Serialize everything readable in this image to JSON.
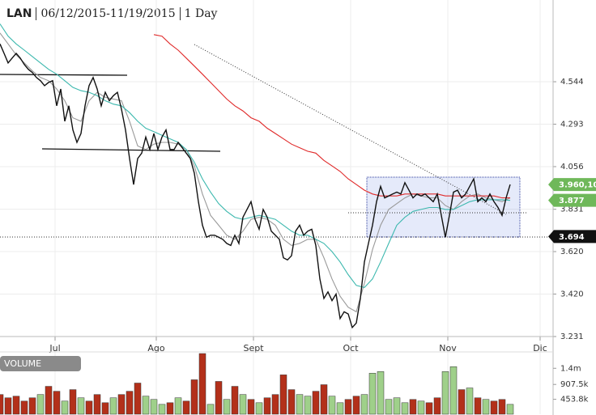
{
  "chart_data": {
    "type": "stock",
    "title_symbol": "LAN",
    "title_range": "06/12/2015-11/19/2015",
    "title_interval": "1 Day",
    "log_scale": true,
    "grid": true,
    "xlim": [
      0,
      136.6
    ],
    "xticks": [
      {
        "value": 13.6,
        "label": "Jul"
      },
      {
        "value": 38.6,
        "label": "Ago"
      },
      {
        "value": 62.6,
        "label": "Sept"
      },
      {
        "value": 86.6,
        "label": "Oct"
      },
      {
        "value": 110.6,
        "label": "Nov"
      },
      {
        "value": 133.4,
        "label": "Dic"
      }
    ],
    "ylim": [
      3.231,
      4.95
    ],
    "yticks": [
      4.544,
      4.293,
      4.056,
      3.831,
      {
        "value": 3.62,
        "label": "3.620"
      },
      {
        "value": 3.42,
        "label": "3.420"
      },
      3.231
    ],
    "series": [
      {
        "color": "#999999",
        "x": [
          0,
          2,
          4,
          6,
          8,
          10,
          12,
          14,
          16,
          18,
          20,
          22,
          24,
          26,
          28,
          30,
          32,
          34,
          36,
          38,
          40,
          42,
          44,
          46,
          48,
          50,
          52,
          54,
          56,
          58,
          60,
          62,
          64,
          66,
          68,
          70,
          72,
          74,
          76,
          78,
          80,
          82,
          84,
          86,
          88,
          90,
          92,
          94,
          96,
          98,
          100,
          102,
          104,
          106,
          108,
          110,
          112,
          114,
          116,
          118,
          120,
          122,
          124,
          126
        ],
        "values": [
          4.85,
          4.78,
          4.71,
          4.66,
          4.61,
          4.57,
          4.55,
          4.5,
          4.43,
          4.33,
          4.31,
          4.43,
          4.48,
          4.45,
          4.44,
          4.43,
          4.31,
          4.17,
          4.15,
          4.18,
          4.19,
          4.19,
          4.18,
          4.15,
          4.06,
          3.91,
          3.8,
          3.75,
          3.7,
          3.68,
          3.72,
          3.78,
          3.79,
          3.78,
          3.75,
          3.68,
          3.65,
          3.66,
          3.68,
          3.68,
          3.59,
          3.49,
          3.41,
          3.36,
          3.34,
          3.47,
          3.63,
          3.75,
          3.83,
          3.86,
          3.89,
          3.91,
          3.9,
          3.89,
          3.89,
          3.85,
          3.83,
          3.87,
          3.9,
          3.91,
          3.89,
          3.88,
          3.87,
          3.89
        ]
      },
      {
        "color": "#3cb8ae",
        "x": [
          0,
          2,
          4,
          6,
          8,
          10,
          12,
          14,
          16,
          18,
          20,
          22,
          24,
          26,
          28,
          30,
          32,
          34,
          36,
          38,
          40,
          42,
          44,
          46,
          48,
          50,
          52,
          54,
          56,
          58,
          60,
          62,
          64,
          66,
          68,
          70,
          72,
          74,
          76,
          78,
          80,
          82,
          84,
          86,
          88,
          90,
          92,
          94,
          96,
          98,
          100,
          102,
          104,
          106,
          108,
          110,
          112,
          114,
          116,
          118,
          120,
          122,
          124,
          126
        ],
        "values": [
          4.91,
          4.83,
          4.78,
          4.74,
          4.7,
          4.66,
          4.62,
          4.59,
          4.55,
          4.51,
          4.49,
          4.48,
          4.46,
          4.43,
          4.41,
          4.4,
          4.36,
          4.31,
          4.27,
          4.25,
          4.23,
          4.21,
          4.19,
          4.15,
          4.08,
          3.99,
          3.92,
          3.86,
          3.82,
          3.79,
          3.78,
          3.79,
          3.8,
          3.79,
          3.78,
          3.75,
          3.72,
          3.7,
          3.7,
          3.68,
          3.66,
          3.62,
          3.57,
          3.51,
          3.46,
          3.45,
          3.49,
          3.57,
          3.66,
          3.75,
          3.79,
          3.82,
          3.83,
          3.84,
          3.84,
          3.83,
          3.83,
          3.85,
          3.87,
          3.88,
          3.88,
          3.88,
          3.88,
          3.877
        ]
      },
      {
        "color": "#e02a2a",
        "x": [
          38,
          40,
          42,
          44,
          46,
          48,
          50,
          52,
          54,
          56,
          58,
          60,
          62,
          64,
          66,
          68,
          70,
          72,
          74,
          76,
          78,
          80,
          82,
          84,
          86,
          88,
          90,
          92,
          94,
          96,
          98,
          100,
          102,
          104,
          106,
          108,
          110,
          112,
          114,
          116,
          118,
          120,
          122,
          124,
          126
        ],
        "values": [
          4.84,
          4.83,
          4.78,
          4.74,
          4.69,
          4.64,
          4.59,
          4.54,
          4.49,
          4.44,
          4.4,
          4.37,
          4.33,
          4.31,
          4.27,
          4.24,
          4.21,
          4.18,
          4.16,
          4.14,
          4.13,
          4.09,
          4.06,
          4.03,
          3.99,
          3.96,
          3.93,
          3.91,
          3.9,
          3.9,
          3.9,
          3.91,
          3.91,
          3.91,
          3.91,
          3.91,
          3.9,
          3.9,
          3.9,
          3.9,
          3.9,
          3.9,
          3.9,
          3.89,
          3.89
        ]
      },
      {
        "color": "#111111",
        "x": [
          0,
          1,
          2,
          3,
          4,
          5,
          6,
          7,
          8,
          9,
          10,
          11,
          12,
          13,
          14,
          15,
          16,
          17,
          18,
          19,
          20,
          21,
          22,
          23,
          24,
          25,
          26,
          27,
          28,
          29,
          30,
          31,
          32,
          33,
          34,
          35,
          36,
          37,
          38,
          39,
          40,
          41,
          42,
          43,
          44,
          45,
          46,
          47,
          48,
          49,
          50,
          51,
          52,
          53,
          54,
          55,
          56,
          57,
          58,
          59,
          60,
          61,
          62,
          63,
          64,
          65,
          66,
          67,
          68,
          69,
          70,
          71,
          72,
          73,
          74,
          75,
          76,
          77,
          78,
          79,
          80,
          81,
          82,
          83,
          84,
          85,
          86,
          87,
          88,
          89,
          90,
          91,
          92,
          93,
          94,
          95,
          96,
          97,
          98,
          99,
          100,
          101,
          102,
          103,
          104,
          105,
          106,
          107,
          108,
          109,
          110,
          111,
          112,
          113,
          114,
          115,
          116,
          117,
          118,
          119,
          120,
          121,
          122,
          123,
          124,
          125,
          126
        ],
        "values": [
          4.78,
          4.72,
          4.66,
          4.69,
          4.72,
          4.69,
          4.65,
          4.62,
          4.6,
          4.57,
          4.55,
          4.52,
          4.54,
          4.55,
          4.4,
          4.5,
          4.31,
          4.4,
          4.26,
          4.19,
          4.24,
          4.4,
          4.52,
          4.57,
          4.5,
          4.4,
          4.48,
          4.43,
          4.46,
          4.48,
          4.38,
          4.26,
          4.1,
          3.96,
          4.1,
          4.13,
          4.22,
          4.15,
          4.24,
          4.15,
          4.22,
          4.26,
          4.15,
          4.15,
          4.19,
          4.16,
          4.13,
          4.1,
          4.02,
          3.87,
          3.75,
          3.69,
          3.7,
          3.7,
          3.69,
          3.68,
          3.66,
          3.65,
          3.7,
          3.66,
          3.79,
          3.83,
          3.87,
          3.78,
          3.73,
          3.83,
          3.79,
          3.72,
          3.7,
          3.68,
          3.59,
          3.58,
          3.6,
          3.72,
          3.75,
          3.7,
          3.72,
          3.73,
          3.65,
          3.49,
          3.4,
          3.43,
          3.39,
          3.42,
          3.31,
          3.34,
          3.33,
          3.27,
          3.29,
          3.4,
          3.57,
          3.66,
          3.75,
          3.87,
          3.95,
          3.89,
          3.9,
          3.91,
          3.92,
          3.91,
          3.97,
          3.93,
          3.89,
          3.91,
          3.9,
          3.91,
          3.89,
          3.87,
          3.91,
          3.8,
          3.69,
          3.8,
          3.92,
          3.93,
          3.89,
          3.91,
          3.95,
          3.99,
          3.87,
          3.89,
          3.87,
          3.91,
          3.87,
          3.84,
          3.8,
          3.89,
          3.96
        ]
      }
    ],
    "price_badges": [
      {
        "value": 3.96,
        "label": "3.960,10",
        "color": "#6fb85a"
      },
      {
        "value": 3.877,
        "color": "#6fb85a"
      },
      {
        "value": 3.694,
        "color": "#111111"
      }
    ],
    "volume": {
      "label": "VOLUME",
      "ylim": [
        0,
        1900000
      ],
      "yticks": [
        {
          "value": 1400000,
          "label": "1.4m"
        },
        {
          "value": 907500,
          "label": "907.5k"
        },
        {
          "value": 453800,
          "label": "453.8k"
        }
      ],
      "x": [
        0,
        2,
        4,
        6,
        8,
        10,
        12,
        14,
        16,
        18,
        20,
        22,
        24,
        26,
        28,
        30,
        32,
        34,
        36,
        38,
        40,
        42,
        44,
        46,
        48,
        50,
        52,
        54,
        56,
        58,
        60,
        62,
        64,
        66,
        68,
        70,
        72,
        74,
        76,
        78,
        80,
        82,
        84,
        86,
        88,
        90,
        92,
        94,
        96,
        98,
        100,
        102,
        104,
        106,
        108,
        110,
        112,
        114,
        116,
        118,
        120,
        122,
        124,
        126
      ],
      "values": [
        600000,
        500000,
        550000,
        400000,
        500000,
        600000,
        850000,
        700000,
        400000,
        750000,
        500000,
        400000,
        600000,
        350000,
        500000,
        600000,
        700000,
        950000,
        550000,
        450000,
        300000,
        350000,
        500000,
        400000,
        1050000,
        1850000,
        300000,
        1000000,
        450000,
        850000,
        600000,
        450000,
        350000,
        500000,
        600000,
        1200000,
        750000,
        600000,
        550000,
        700000,
        900000,
        550000,
        350000,
        450000,
        550000,
        600000,
        1250000,
        1300000,
        450000,
        500000,
        350000,
        450000,
        400000,
        350000,
        500000,
        1300000,
        1450000,
        750000,
        800000,
        500000,
        450000,
        400000,
        450000,
        300000
      ],
      "colors": [
        "#b3301a",
        "#b3301a",
        "#b3301a",
        "#b3301a",
        "#b3301a",
        "#9fd08a",
        "#b3301a",
        "#b3301a",
        "#9fd08a",
        "#b3301a",
        "#9fd08a",
        "#b3301a",
        "#b3301a",
        "#b3301a",
        "#9fd08a",
        "#b3301a",
        "#b3301a",
        "#b3301a",
        "#9fd08a",
        "#9fd08a",
        "#9fd08a",
        "#b3301a",
        "#9fd08a",
        "#b3301a",
        "#b3301a",
        "#b3301a",
        "#9fd08a",
        "#b3301a",
        "#9fd08a",
        "#b3301a",
        "#9fd08a",
        "#b3301a",
        "#9fd08a",
        "#b3301a",
        "#b3301a",
        "#b3301a",
        "#b3301a",
        "#9fd08a",
        "#9fd08a",
        "#b3301a",
        "#b3301a",
        "#9fd08a",
        "#9fd08a",
        "#b3301a",
        "#b3301a",
        "#9fd08a",
        "#9fd08a",
        "#9fd08a",
        "#9fd08a",
        "#9fd08a",
        "#9fd08a",
        "#b3301a",
        "#9fd08a",
        "#b3301a",
        "#b3301a",
        "#9fd08a",
        "#9fd08a",
        "#b3301a",
        "#9fd08a",
        "#b3301a",
        "#9fd08a",
        "#b3301a",
        "#b3301a",
        "#9fd08a"
      ]
    }
  }
}
